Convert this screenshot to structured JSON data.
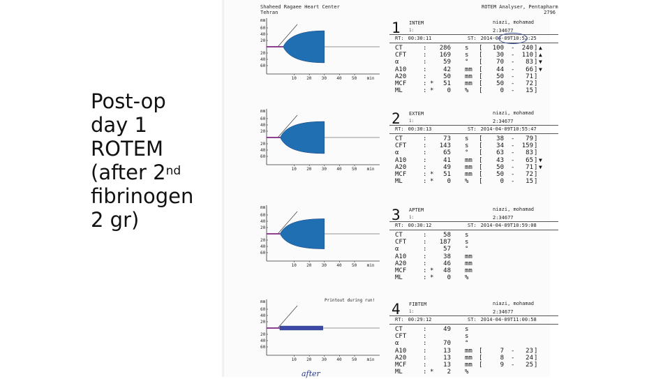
{
  "slide": {
    "lines": [
      "Post-op",
      "day 1",
      "ROTEM",
      "(after 2",
      "fibrinogen",
      "2 gr)"
    ],
    "sup": "nd"
  },
  "header": {
    "left": [
      "Shaheed Ragaee Heart Center",
      "Tehran"
    ],
    "right": [
      "ROTEM Analyser, Pentapharm",
      "2796"
    ]
  },
  "axis": {
    "unit": "mm",
    "y_ticks": [
      "60",
      "40",
      "20",
      "20",
      "40",
      "60"
    ],
    "x_ticks": [
      "10",
      "20",
      "30",
      "40",
      "50"
    ],
    "x_unit": "min"
  },
  "colors": {
    "trace": "#1f6fb2",
    "trace_dark": "#3c47a8",
    "ct_segment": "#8e3f8e",
    "ink": "#222222"
  },
  "tests": [
    {
      "number": "1",
      "name": "INTEM",
      "channel": "1:",
      "patient": [
        "niazi, mohamad",
        "2:34677"
      ],
      "rt_label": "RT:",
      "rt": "00:30:11",
      "st_label": "ST:",
      "st": "2014-04-09T10:52:25",
      "params": [
        {
          "name": "CT",
          "star": "",
          "value": "286",
          "unit": "s",
          "min": "100",
          "max": "240",
          "flag": "▲"
        },
        {
          "name": "CFT",
          "star": "",
          "value": "169",
          "unit": "s",
          "min": "30",
          "max": "110",
          "flag": "▲"
        },
        {
          "name": "α",
          "star": "",
          "value": "59",
          "unit": "°",
          "min": "70",
          "max": "83",
          "flag": "▼"
        },
        {
          "name": "A10",
          "star": "",
          "value": "42",
          "unit": "mm",
          "min": "44",
          "max": "66",
          "flag": "▼"
        },
        {
          "name": "A20",
          "star": "",
          "value": "50",
          "unit": "mm",
          "min": "50",
          "max": "71",
          "flag": ""
        },
        {
          "name": "MCF",
          "star": "*",
          "value": "51",
          "unit": "mm",
          "min": "50",
          "max": "72",
          "flag": ""
        },
        {
          "name": "ML",
          "star": "*",
          "value": "0",
          "unit": "%",
          "min": "0",
          "max": "15",
          "flag": ""
        }
      ],
      "trace": {
        "ct_min": 4.8,
        "amplitude_mm": 51,
        "run_min": 30
      }
    },
    {
      "number": "2",
      "name": "EXTEM",
      "channel": "1:",
      "patient": [
        "niazi, mohamad",
        "2:34677"
      ],
      "rt_label": "RT:",
      "rt": "00:30:13",
      "st_label": "ST:",
      "st": "2014-04-09T10:55:47",
      "params": [
        {
          "name": "CT",
          "star": "",
          "value": "73",
          "unit": "s",
          "min": "38",
          "max": "79",
          "flag": ""
        },
        {
          "name": "CFT",
          "star": "",
          "value": "143",
          "unit": "s",
          "min": "34",
          "max": "159",
          "flag": ""
        },
        {
          "name": "α",
          "star": "",
          "value": "65",
          "unit": "°",
          "min": "63",
          "max": "83",
          "flag": ""
        },
        {
          "name": "A10",
          "star": "",
          "value": "41",
          "unit": "mm",
          "min": "43",
          "max": "65",
          "flag": "▼"
        },
        {
          "name": "A20",
          "star": "",
          "value": "49",
          "unit": "mm",
          "min": "50",
          "max": "71",
          "flag": "▼"
        },
        {
          "name": "MCF",
          "star": "*",
          "value": "51",
          "unit": "mm",
          "min": "50",
          "max": "72",
          "flag": ""
        },
        {
          "name": "ML",
          "star": "*",
          "value": "0",
          "unit": "%",
          "min": "0",
          "max": "15",
          "flag": ""
        }
      ],
      "trace": {
        "ct_min": 1.2,
        "amplitude_mm": 51,
        "run_min": 30
      }
    },
    {
      "number": "3",
      "name": "APTEM",
      "channel": "1:",
      "patient": [
        "niazi, mohamad",
        "2:34677"
      ],
      "rt_label": "RT:",
      "rt": "00:30:12",
      "st_label": "ST:",
      "st": "2014-04-09T10:59:08",
      "params": [
        {
          "name": "CT",
          "star": "",
          "value": "58",
          "unit": "s",
          "min": "",
          "max": "",
          "flag": ""
        },
        {
          "name": "CFT",
          "star": "",
          "value": "187",
          "unit": "s",
          "min": "",
          "max": "",
          "flag": ""
        },
        {
          "name": "α",
          "star": "",
          "value": "57",
          "unit": "°",
          "min": "",
          "max": "",
          "flag": ""
        },
        {
          "name": "A10",
          "star": "",
          "value": "38",
          "unit": "mm",
          "min": "",
          "max": "",
          "flag": ""
        },
        {
          "name": "A20",
          "star": "",
          "value": "46",
          "unit": "mm",
          "min": "",
          "max": "",
          "flag": ""
        },
        {
          "name": "MCF",
          "star": "*",
          "value": "48",
          "unit": "mm",
          "min": "",
          "max": "",
          "flag": ""
        },
        {
          "name": "ML",
          "star": "*",
          "value": "0",
          "unit": "%",
          "min": "",
          "max": "",
          "flag": ""
        }
      ],
      "trace": {
        "ct_min": 1.0,
        "amplitude_mm": 48,
        "run_min": 30
      }
    },
    {
      "number": "4",
      "name": "FIBTEM",
      "channel": "1:",
      "patient": [
        "niazi, mohamad",
        "2:34677"
      ],
      "rt_label": "RT:",
      "rt": "00:29:12",
      "st_label": "ST:",
      "st": "2014-04-09T11:00:58",
      "printout": "Printout during run!",
      "params": [
        {
          "name": "CT",
          "star": "",
          "value": "49",
          "unit": "s",
          "min": "",
          "max": "",
          "flag": ""
        },
        {
          "name": "CFT",
          "star": "",
          "value": "",
          "unit": "s",
          "min": "",
          "max": "",
          "flag": ""
        },
        {
          "name": "α",
          "star": "",
          "value": "70",
          "unit": "°",
          "min": "",
          "max": "",
          "flag": ""
        },
        {
          "name": "A10",
          "star": "",
          "value": "13",
          "unit": "mm",
          "min": "7",
          "max": "23",
          "flag": ""
        },
        {
          "name": "A20",
          "star": "",
          "value": "13",
          "unit": "mm",
          "min": "8",
          "max": "24",
          "flag": ""
        },
        {
          "name": "MCF",
          "star": "",
          "value": "13",
          "unit": "mm",
          "min": "9",
          "max": "25",
          "flag": ""
        },
        {
          "name": "ML",
          "star": "*",
          "value": "2",
          "unit": "%",
          "min": "",
          "max": "",
          "flag": ""
        }
      ],
      "trace": {
        "ct_min": 0.8,
        "amplitude_mm": 13,
        "run_min": 29
      }
    }
  ],
  "handwritten_note": "after"
}
